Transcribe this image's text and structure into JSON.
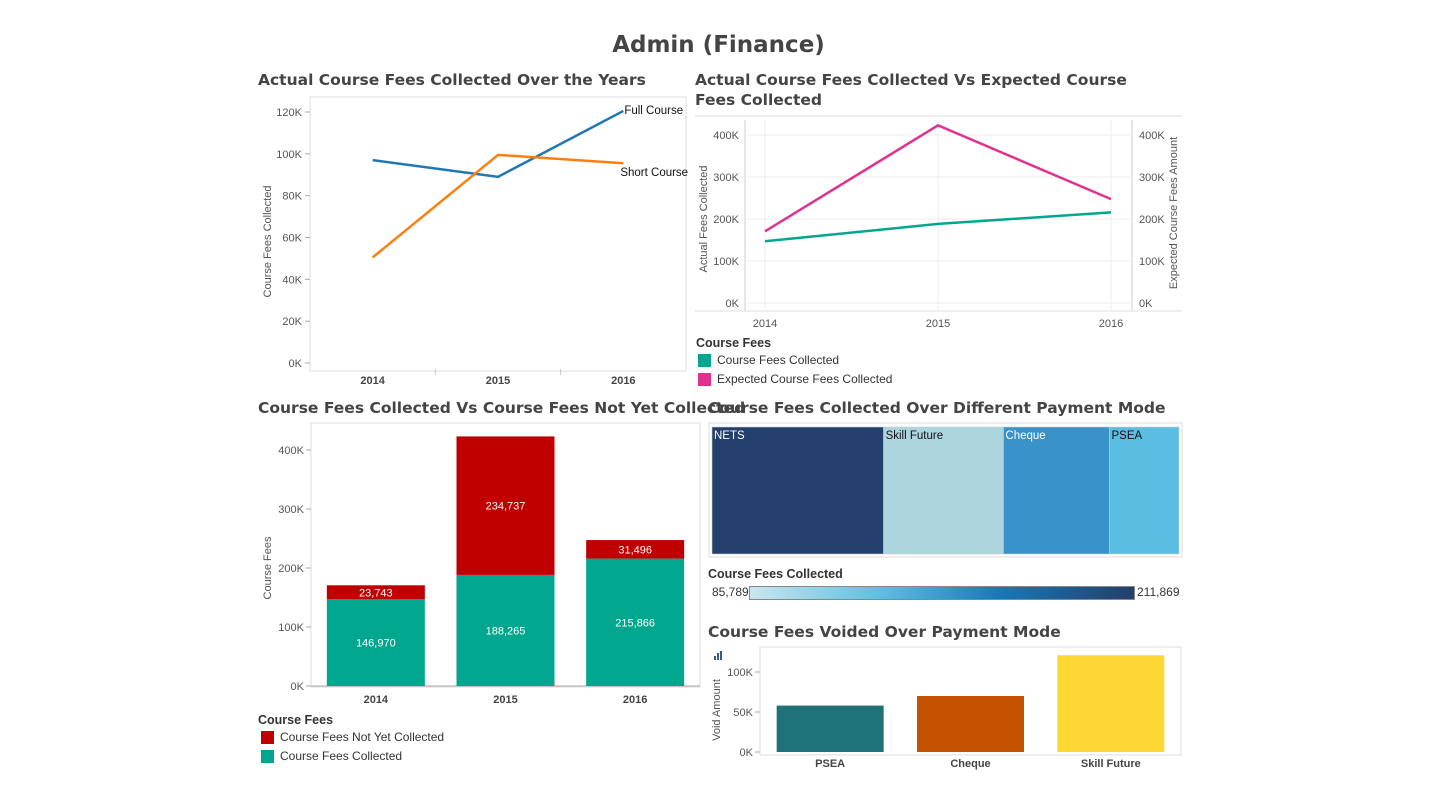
{
  "dashboard": {
    "title": "Admin (Finance)"
  },
  "colors": {
    "full": "#1f77b4",
    "short": "#ff7f0e",
    "actual": "#00a78e",
    "expected": "#e0338f",
    "collected": "#00a78e",
    "not_collected": "#c00000",
    "nets": "#233f6b",
    "skill_future": "#add5dd",
    "cheque": "#3993c8",
    "psea": "#5bbde1",
    "void_psea": "#1e7278",
    "void_cheque": "#c45200",
    "void_skill": "#fdd835"
  },
  "charts": {
    "line": {
      "title": "Actual Course Fees Collected Over the Years"
    },
    "dual": {
      "title": "Actual Course Fees Collected Vs Expected Course Fees Collected"
    },
    "stacked": {
      "title": "Course Fees Collected Vs Course Fees Not Yet Collected"
    },
    "treemap": {
      "title": "Course Fees Collected Over Different Payment Mode"
    },
    "void": {
      "title": "Course Fees Voided Over Payment Mode"
    }
  },
  "legends": {
    "dual": {
      "title": "Course Fees",
      "items": [
        "Course Fees Collected",
        "Expected Course Fees Collected"
      ]
    },
    "stacked": {
      "title": "Course Fees",
      "items": [
        "Course Fees Not Yet Collected",
        "Course Fees Collected"
      ]
    },
    "gradient": {
      "title": "Course Fees Collected",
      "min_label": "85,789",
      "max_label": "211,869"
    }
  },
  "chart_data": [
    {
      "type": "line",
      "title": "Actual Course Fees Collected Over the Years",
      "xlabel": "",
      "ylabel": "Course Fees Collected",
      "categories": [
        "2014",
        "2015",
        "2016"
      ],
      "yticks": [
        "0K",
        "20K",
        "40K",
        "60K",
        "80K",
        "100K",
        "120K"
      ],
      "ylim": [
        0,
        120000
      ],
      "series": [
        {
          "name": "Full Course",
          "values": [
            97000,
            89000,
            120500
          ]
        },
        {
          "name": "Short Course",
          "values": [
            50500,
            99500,
            95500
          ]
        }
      ]
    },
    {
      "type": "line",
      "title": "Actual Course Fees Collected Vs Expected Course Fees Collected",
      "ylabel": "Actual Fees Collected",
      "y2label": "Expected Course Fees Amount",
      "categories": [
        "2014",
        "2015",
        "2016"
      ],
      "yticks": [
        "0K",
        "100K",
        "200K",
        "300K",
        "400K"
      ],
      "ylim": [
        0,
        400000
      ],
      "series": [
        {
          "name": "Course Fees Collected",
          "values": [
            146970,
            188265,
            215866
          ]
        },
        {
          "name": "Expected Course Fees Collected",
          "values": [
            170713,
            423002,
            247362
          ]
        }
      ]
    },
    {
      "type": "bar",
      "stacked": true,
      "title": "Course Fees Collected Vs Course Fees Not Yet Collected",
      "ylabel": "Course Fees",
      "categories": [
        "2014",
        "2015",
        "2016"
      ],
      "yticks": [
        "0K",
        "100K",
        "200K",
        "300K",
        "400K"
      ],
      "ylim": [
        0,
        400000
      ],
      "series": [
        {
          "name": "Course Fees Collected",
          "values": [
            146970,
            188265,
            215866
          ],
          "labels": [
            "146,970",
            "188,265",
            "215,866"
          ]
        },
        {
          "name": "Course Fees Not Yet Collected",
          "values": [
            23743,
            234737,
            31496
          ],
          "labels": [
            "23,743",
            "234,737",
            "31,496"
          ]
        }
      ]
    },
    {
      "type": "heatmap",
      "title": "Course Fees Collected Over Different Payment Mode",
      "categories": [
        "NETS",
        "Skill Future",
        "Cheque",
        "PSEA"
      ],
      "values": [
        211869,
        148000,
        131000,
        85789
      ]
    },
    {
      "type": "bar",
      "title": "Course Fees Voided Over Payment Mode",
      "ylabel": "Void Amount",
      "categories": [
        "PSEA",
        "Cheque",
        "Skill Future"
      ],
      "yticks": [
        "0K",
        "50K",
        "100K"
      ],
      "ylim": [
        0,
        100000
      ],
      "values": [
        58000,
        70000,
        121000
      ]
    }
  ]
}
